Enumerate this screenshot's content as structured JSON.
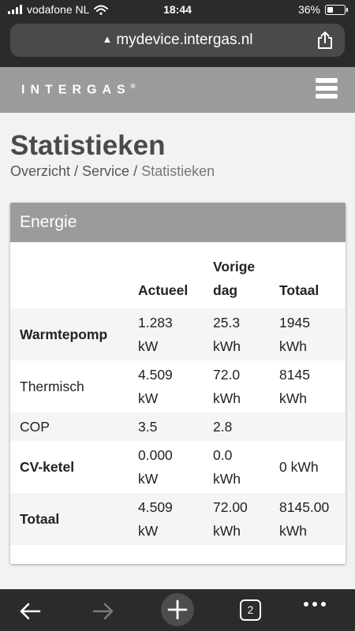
{
  "status_bar": {
    "carrier": "vodafone NL",
    "time": "18:44",
    "battery": "36%"
  },
  "browser": {
    "url": "mydevice.intergas.nl",
    "tab_count": "2"
  },
  "site": {
    "logo": "INTERGAS",
    "logo_mark": "®"
  },
  "page": {
    "title": "Statistieken",
    "breadcrumb": {
      "item1": "Overzicht",
      "item2": "Service",
      "current": "Statistieken",
      "separator": " / "
    }
  },
  "energy_card": {
    "title": "Energie",
    "headers": {
      "col1": "",
      "col2": "Actueel",
      "col3_line1": "Vorige",
      "col3_line2": "dag",
      "col4": "Totaal"
    },
    "rows": [
      {
        "label": "Warmtepomp",
        "actueel_1": "1.283",
        "actueel_2": "kW",
        "vorige_1": "25.3",
        "vorige_2": "kWh",
        "totaal_1": "1945",
        "totaal_2": "kWh"
      },
      {
        "label": "Thermisch",
        "actueel_1": "4.509",
        "actueel_2": "kW",
        "vorige_1": "72.0",
        "vorige_2": "kWh",
        "totaal_1": "8145",
        "totaal_2": "kWh"
      },
      {
        "label": "COP",
        "actueel": "3.5",
        "vorige": "2.8",
        "totaal": ""
      },
      {
        "label": "CV-ketel",
        "actueel_1": "0.000",
        "actueel_2": "kW",
        "vorige_1": "0.0",
        "vorige_2": "kWh",
        "totaal": "0 kWh"
      },
      {
        "label": "Totaal",
        "actueel_1": "4.509",
        "actueel_2": "kW",
        "vorige_1": "72.00",
        "vorige_2": "kWh",
        "totaal_1": "8145.00",
        "totaal_2": "kWh"
      }
    ]
  },
  "icons": {
    "wifi": "wifi-icon",
    "signal": "signal-icon",
    "battery": "battery-icon",
    "warning": "warning-icon",
    "share": "share-icon",
    "menu": "hamburger-menu-icon",
    "back": "back-arrow-icon",
    "forward": "forward-arrow-icon",
    "new_tab": "plus-icon",
    "more": "more-icon"
  },
  "colors": {
    "header_gray": "#9b9b9b",
    "chrome_dark": "#2b2b2b",
    "title_gray": "#4a4a4a"
  }
}
